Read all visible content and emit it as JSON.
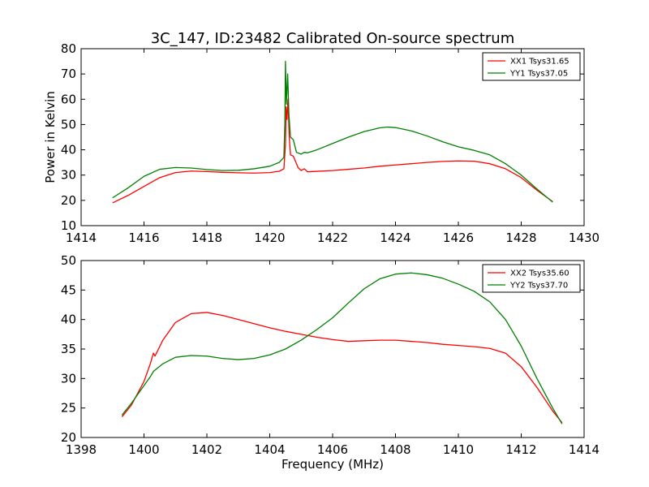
{
  "figure": {
    "title": "3C_147, ID:23482 Calibrated On-source spectrum",
    "xlabel": "Frequency (MHz)"
  },
  "chart_data": [
    {
      "type": "line",
      "title": "3C_147, ID:23482 Calibrated On-source spectrum",
      "xlabel": "",
      "ylabel": "Power in Kelvin",
      "xlim": [
        1414,
        1430
      ],
      "ylim": [
        10,
        80
      ],
      "xticks": [
        1414,
        1416,
        1418,
        1420,
        1422,
        1424,
        1426,
        1428,
        1430
      ],
      "yticks": [
        10,
        20,
        30,
        40,
        50,
        60,
        70,
        80
      ],
      "legend": "top-right",
      "grid": false,
      "series": [
        {
          "name": "XX1 Tsys31.65",
          "color": "#ff0000",
          "points": [
            [
              1415.0,
              19.0
            ],
            [
              1415.5,
              22.0
            ],
            [
              1416.0,
              25.5
            ],
            [
              1416.5,
              29.0
            ],
            [
              1417.0,
              31.0
            ],
            [
              1417.5,
              31.6
            ],
            [
              1418.0,
              31.4
            ],
            [
              1418.5,
              31.1
            ],
            [
              1419.0,
              30.9
            ],
            [
              1419.5,
              30.8
            ],
            [
              1420.0,
              31.0
            ],
            [
              1420.3,
              31.5
            ],
            [
              1420.45,
              32.5
            ],
            [
              1420.5,
              42.0
            ],
            [
              1420.52,
              57.0
            ],
            [
              1420.55,
              52.0
            ],
            [
              1420.58,
              60.0
            ],
            [
              1420.62,
              45.0
            ],
            [
              1420.66,
              38.0
            ],
            [
              1420.75,
              37.5
            ],
            [
              1420.9,
              33.0
            ],
            [
              1421.0,
              31.8
            ],
            [
              1421.1,
              32.5
            ],
            [
              1421.2,
              31.3
            ],
            [
              1421.5,
              31.5
            ],
            [
              1422.0,
              31.8
            ],
            [
              1422.5,
              32.3
            ],
            [
              1423.0,
              32.8
            ],
            [
              1423.5,
              33.5
            ],
            [
              1424.0,
              34.0
            ],
            [
              1424.5,
              34.5
            ],
            [
              1425.0,
              35.0
            ],
            [
              1425.5,
              35.4
            ],
            [
              1426.0,
              35.6
            ],
            [
              1426.5,
              35.5
            ],
            [
              1427.0,
              34.5
            ],
            [
              1427.5,
              32.5
            ],
            [
              1428.0,
              29.0
            ],
            [
              1428.5,
              24.0
            ],
            [
              1429.0,
              19.5
            ]
          ]
        },
        {
          "name": "YY1 Tsys37.05",
          "color": "#008000",
          "points": [
            [
              1415.0,
              21.0
            ],
            [
              1415.5,
              25.0
            ],
            [
              1416.0,
              29.5
            ],
            [
              1416.5,
              32.3
            ],
            [
              1417.0,
              33.0
            ],
            [
              1417.5,
              32.8
            ],
            [
              1418.0,
              32.2
            ],
            [
              1418.5,
              31.8
            ],
            [
              1419.0,
              31.9
            ],
            [
              1419.5,
              32.5
            ],
            [
              1420.0,
              33.5
            ],
            [
              1420.3,
              35.0
            ],
            [
              1420.45,
              37.0
            ],
            [
              1420.48,
              50.0
            ],
            [
              1420.5,
              75.0
            ],
            [
              1420.53,
              58.0
            ],
            [
              1420.57,
              70.0
            ],
            [
              1420.61,
              54.0
            ],
            [
              1420.66,
              45.0
            ],
            [
              1420.75,
              44.0
            ],
            [
              1420.85,
              39.0
            ],
            [
              1421.0,
              38.3
            ],
            [
              1421.1,
              39.0
            ],
            [
              1421.2,
              38.8
            ],
            [
              1421.5,
              40.0
            ],
            [
              1422.0,
              42.5
            ],
            [
              1422.5,
              45.0
            ],
            [
              1423.0,
              47.2
            ],
            [
              1423.5,
              48.7
            ],
            [
              1423.75,
              49.0
            ],
            [
              1424.0,
              48.8
            ],
            [
              1424.5,
              47.5
            ],
            [
              1425.0,
              45.5
            ],
            [
              1425.5,
              43.2
            ],
            [
              1426.0,
              41.2
            ],
            [
              1426.5,
              39.8
            ],
            [
              1427.0,
              38.0
            ],
            [
              1427.5,
              34.5
            ],
            [
              1428.0,
              30.0
            ],
            [
              1428.5,
              24.5
            ],
            [
              1429.0,
              19.3
            ]
          ]
        }
      ]
    },
    {
      "type": "line",
      "title": "",
      "xlabel": "Frequency (MHz)",
      "ylabel": "",
      "xlim": [
        1398,
        1414
      ],
      "ylim": [
        20,
        50
      ],
      "xticks": [
        1398,
        1400,
        1402,
        1404,
        1406,
        1408,
        1410,
        1412,
        1414
      ],
      "yticks": [
        20,
        25,
        30,
        35,
        40,
        45,
        50
      ],
      "legend": "top-right",
      "grid": false,
      "series": [
        {
          "name": "XX2 Tsys35.60",
          "color": "#ff0000",
          "points": [
            [
              1399.3,
              23.5
            ],
            [
              1399.6,
              25.5
            ],
            [
              1400.0,
              29.5
            ],
            [
              1400.2,
              32.5
            ],
            [
              1400.3,
              34.3
            ],
            [
              1400.35,
              33.8
            ],
            [
              1400.6,
              36.5
            ],
            [
              1401.0,
              39.5
            ],
            [
              1401.5,
              41.0
            ],
            [
              1402.0,
              41.2
            ],
            [
              1402.5,
              40.7
            ],
            [
              1403.0,
              40.0
            ],
            [
              1403.5,
              39.3
            ],
            [
              1404.0,
              38.6
            ],
            [
              1404.5,
              38.0
            ],
            [
              1405.0,
              37.5
            ],
            [
              1405.5,
              37.0
            ],
            [
              1406.0,
              36.6
            ],
            [
              1406.5,
              36.3
            ],
            [
              1407.0,
              36.4
            ],
            [
              1407.5,
              36.5
            ],
            [
              1408.0,
              36.5
            ],
            [
              1408.5,
              36.3
            ],
            [
              1409.0,
              36.1
            ],
            [
              1409.5,
              35.8
            ],
            [
              1410.0,
              35.6
            ],
            [
              1410.5,
              35.4
            ],
            [
              1411.0,
              35.1
            ],
            [
              1411.5,
              34.3
            ],
            [
              1412.0,
              32.0
            ],
            [
              1412.5,
              28.5
            ],
            [
              1413.0,
              24.5
            ],
            [
              1413.3,
              22.5
            ]
          ]
        },
        {
          "name": "YY2 Tsys37.70",
          "color": "#008000",
          "points": [
            [
              1399.3,
              23.8
            ],
            [
              1399.6,
              25.8
            ],
            [
              1400.0,
              28.8
            ],
            [
              1400.2,
              30.3
            ],
            [
              1400.3,
              31.2
            ],
            [
              1400.6,
              32.5
            ],
            [
              1401.0,
              33.6
            ],
            [
              1401.5,
              33.9
            ],
            [
              1402.0,
              33.8
            ],
            [
              1402.5,
              33.4
            ],
            [
              1403.0,
              33.2
            ],
            [
              1403.5,
              33.4
            ],
            [
              1404.0,
              34.0
            ],
            [
              1404.5,
              35.0
            ],
            [
              1405.0,
              36.5
            ],
            [
              1405.5,
              38.3
            ],
            [
              1406.0,
              40.3
            ],
            [
              1406.5,
              42.8
            ],
            [
              1407.0,
              45.2
            ],
            [
              1407.5,
              46.9
            ],
            [
              1408.0,
              47.7
            ],
            [
              1408.5,
              47.9
            ],
            [
              1409.0,
              47.6
            ],
            [
              1409.5,
              47.0
            ],
            [
              1410.0,
              46.0
            ],
            [
              1410.5,
              44.8
            ],
            [
              1411.0,
              43.0
            ],
            [
              1411.5,
              40.0
            ],
            [
              1412.0,
              35.5
            ],
            [
              1412.5,
              30.0
            ],
            [
              1413.0,
              25.0
            ],
            [
              1413.3,
              22.3
            ]
          ]
        }
      ]
    }
  ]
}
